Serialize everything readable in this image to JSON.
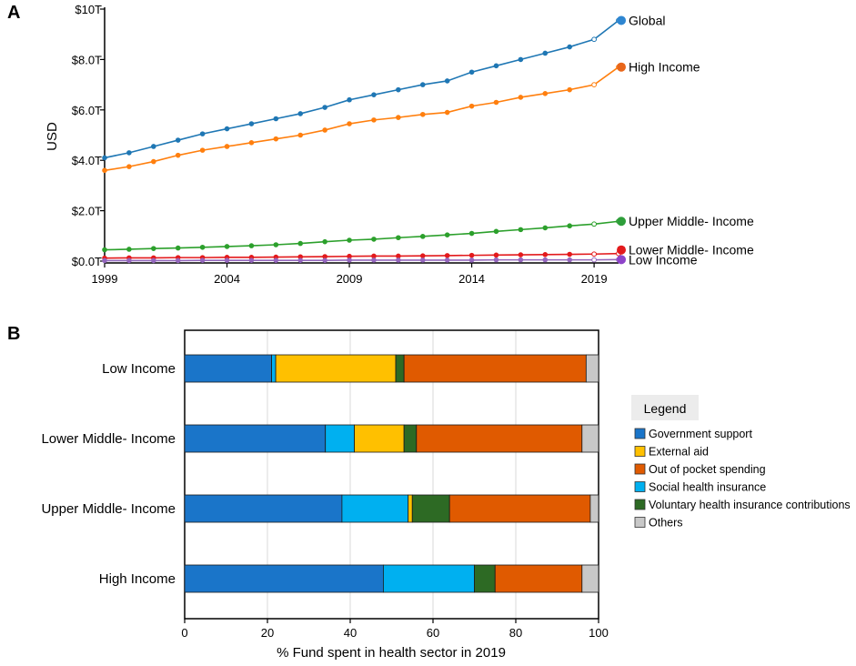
{
  "chart_data": [
    {
      "panel_label": "A",
      "type": "line",
      "ylabel": "USD",
      "xlabel": "",
      "xlim": [
        1999,
        2020
      ],
      "ylim": [
        0,
        10
      ],
      "x_ticks": [
        1999,
        2004,
        2009,
        2014,
        2019
      ],
      "x_tick_labels": [
        "1999",
        "2004",
        "2009",
        "2014",
        "2019"
      ],
      "y_ticks": [
        0,
        2,
        4,
        6,
        8,
        10
      ],
      "y_tick_labels": [
        "$0.0T",
        "$2.0T",
        "$4.0T",
        "$6.0T",
        "$8.0T",
        "$10T"
      ],
      "x": [
        1999,
        2000,
        2001,
        2002,
        2003,
        2004,
        2005,
        2006,
        2007,
        2008,
        2009,
        2010,
        2011,
        2012,
        2013,
        2014,
        2015,
        2016,
        2017,
        2018,
        2019,
        2020
      ],
      "series": [
        {
          "name": "Global",
          "color": "#1f77b4",
          "highlight_color": "#2e86d1",
          "values": [
            4.1,
            4.3,
            4.55,
            4.8,
            5.05,
            5.25,
            5.45,
            5.65,
            5.85,
            6.1,
            6.4,
            6.6,
            6.8,
            7.0,
            7.15,
            7.5,
            7.75,
            8.0,
            8.25,
            8.5,
            8.8,
            9.55
          ]
        },
        {
          "name": "High Income",
          "color": "#ff7f0e",
          "highlight_color": "#e8661a",
          "values": [
            3.6,
            3.75,
            3.95,
            4.2,
            4.4,
            4.55,
            4.7,
            4.85,
            5.0,
            5.2,
            5.45,
            5.6,
            5.7,
            5.82,
            5.9,
            6.15,
            6.3,
            6.5,
            6.65,
            6.8,
            7.0,
            7.7
          ]
        },
        {
          "name": "Upper Middle- Income",
          "color": "#2ca02c",
          "highlight_color": "#2e9e3a",
          "values": [
            0.45,
            0.47,
            0.5,
            0.52,
            0.55,
            0.58,
            0.61,
            0.65,
            0.7,
            0.77,
            0.83,
            0.87,
            0.93,
            0.98,
            1.04,
            1.1,
            1.18,
            1.25,
            1.32,
            1.4,
            1.47,
            1.58
          ]
        },
        {
          "name": "Lower Middle- Income",
          "color": "#e31a1c",
          "highlight_color": "#e31a1c",
          "values": [
            0.12,
            0.13,
            0.13,
            0.14,
            0.14,
            0.15,
            0.15,
            0.16,
            0.17,
            0.18,
            0.19,
            0.2,
            0.2,
            0.21,
            0.22,
            0.23,
            0.24,
            0.25,
            0.26,
            0.27,
            0.28,
            0.3
          ]
        },
        {
          "name": "Low Income",
          "color": "#9467bd",
          "highlight_color": "#8e44c9",
          "values": [
            0.02,
            0.02,
            0.02,
            0.02,
            0.03,
            0.03,
            0.03,
            0.03,
            0.03,
            0.03,
            0.04,
            0.04,
            0.04,
            0.04,
            0.04,
            0.04,
            0.05,
            0.05,
            0.05,
            0.05,
            0.05,
            0.06
          ]
        }
      ],
      "grid": false
    },
    {
      "panel_label": "B",
      "type": "bar",
      "orientation": "horizontal",
      "stacked": true,
      "xlabel": "% Fund spent in health sector in 2019",
      "xlim": [
        0,
        100
      ],
      "x_ticks": [
        0,
        20,
        40,
        60,
        80,
        100
      ],
      "x_tick_labels": [
        "0",
        "20",
        "40",
        "60",
        "80",
        "100"
      ],
      "grid": true,
      "categories": [
        "Low Income",
        "Lower Middle- Income",
        "Upper Middle- Income",
        "High Income"
      ],
      "legend_title": "Legend",
      "legend_entries": [
        "Government support",
        "External aid",
        "Out of pocket spending",
        "Social health insurance",
        "Voluntary health insurance contributions",
        "Others"
      ],
      "stack_order": [
        "Government support",
        "Social health insurance",
        "External aid",
        "Voluntary health insurance contributions",
        "Out of pocket spending",
        "Others"
      ],
      "series": [
        {
          "name": "Government support",
          "color": "#1a75c9",
          "values": [
            21,
            34,
            38,
            48
          ]
        },
        {
          "name": "Social health insurance",
          "color": "#00b0f0",
          "values": [
            1,
            7,
            16,
            22
          ]
        },
        {
          "name": "External aid",
          "color": "#ffc000",
          "values": [
            29,
            12,
            1,
            0
          ]
        },
        {
          "name": "Voluntary health insurance contributions",
          "color": "#2d6a24",
          "values": [
            2,
            3,
            9,
            5
          ]
        },
        {
          "name": "Out of pocket spending",
          "color": "#e05a00",
          "values": [
            44,
            40,
            34,
            21
          ]
        },
        {
          "name": "Others",
          "color": "#c8c8c8",
          "values": [
            3,
            4,
            2,
            4
          ]
        }
      ]
    }
  ]
}
